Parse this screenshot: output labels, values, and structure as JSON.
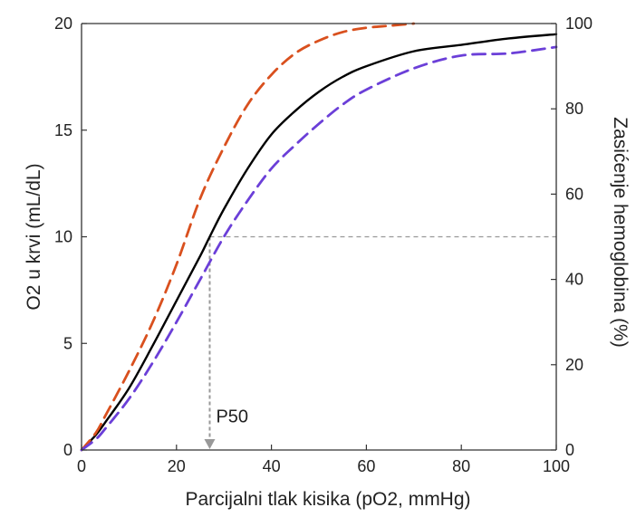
{
  "chart_data": {
    "type": "line",
    "title": "",
    "xlabel": "Parcijalni tlak kisika (pO2, mmHg)",
    "ylabel": "O2 u krvi (mL/dL)",
    "y2label": "Zasićenje hemoglobina (%)",
    "xlim": [
      0,
      100
    ],
    "ylim": [
      0,
      20
    ],
    "y2lim": [
      0,
      100
    ],
    "x_ticks": [
      "0",
      "20",
      "40",
      "60",
      "80",
      "100"
    ],
    "y_ticks": [
      "0",
      "5",
      "10",
      "15",
      "20"
    ],
    "y2_ticks": [
      "0",
      "20",
      "40",
      "60",
      "80",
      "100"
    ],
    "grid": false,
    "legend": "none",
    "series": [
      {
        "style": "solid",
        "color": "#000000",
        "x": [
          0,
          3,
          5,
          10,
          15,
          20,
          25,
          27,
          30,
          35,
          40,
          45,
          50,
          55,
          60,
          70,
          80,
          90,
          100
        ],
        "y": [
          0,
          0.7,
          1.3,
          2.9,
          4.9,
          7.0,
          9.1,
          10.0,
          11.3,
          13.2,
          14.8,
          15.9,
          16.8,
          17.5,
          18.0,
          18.7,
          19.0,
          19.3,
          19.5
        ]
      },
      {
        "style": "dashed",
        "color": "#d9501e",
        "x": [
          0,
          3,
          5,
          10,
          15,
          20,
          25,
          30,
          35,
          40,
          45,
          50,
          55,
          60,
          65,
          70
        ],
        "y": [
          0,
          0.8,
          1.6,
          3.7,
          6.0,
          8.7,
          11.8,
          14.2,
          16.2,
          17.6,
          18.6,
          19.2,
          19.6,
          19.8,
          19.9,
          20.0
        ]
      },
      {
        "style": "dashed",
        "color": "#6b3fd8",
        "x": [
          0,
          3,
          5,
          10,
          15,
          20,
          25,
          30,
          35,
          40,
          45,
          50,
          55,
          60,
          70,
          80,
          90,
          100
        ],
        "y": [
          0,
          0.5,
          1.0,
          2.4,
          4.1,
          6.0,
          8.0,
          10.0,
          11.7,
          13.2,
          14.3,
          15.3,
          16.2,
          16.9,
          17.9,
          18.5,
          18.6,
          18.9
        ]
      }
    ],
    "reference_lines": {
      "p50_x": 27,
      "half_saturation_y": 10,
      "color": "#999999"
    },
    "annotations": [
      "P50"
    ]
  }
}
